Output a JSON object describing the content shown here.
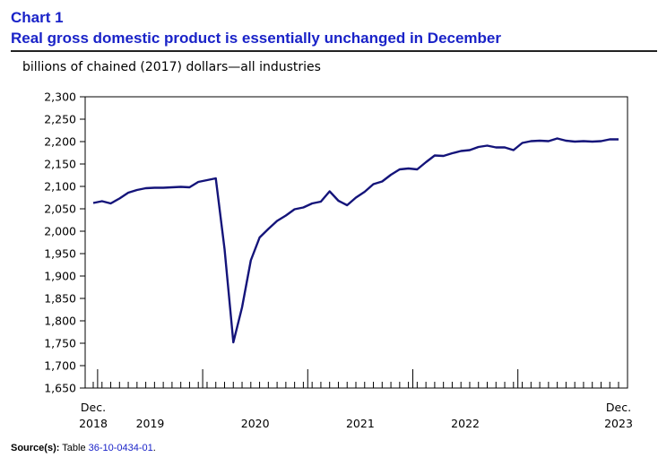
{
  "header": {
    "chart_number": "Chart 1",
    "title": "Real gross domestic product is essentially unchanged in December",
    "unit_label": "billions of chained (2017) dollars—all industries"
  },
  "source": {
    "label": "Source(s):",
    "prefix": "Table",
    "table_id": "36-10-0434-01",
    "suffix": "."
  },
  "colors": {
    "title": "#1a23c8",
    "line": "#14147a",
    "link": "#1a23c8"
  },
  "chart_data": {
    "type": "line",
    "title": "Real gross domestic product is essentially unchanged in December",
    "ylabel": "billions of chained (2017) dollars—all industries",
    "xlabel": "",
    "ylim": [
      1650,
      2300
    ],
    "yticks": [
      1650,
      1700,
      1750,
      1800,
      1850,
      1900,
      1950,
      2000,
      2050,
      2100,
      2150,
      2200,
      2250,
      2300
    ],
    "ytick_labels": [
      "1,650",
      "1,700",
      "1,750",
      "1,800",
      "1,850",
      "1,900",
      "1,950",
      "2,000",
      "2,050",
      "2,100",
      "2,150",
      "2,200",
      "2,250",
      "2,300"
    ],
    "x_month_count": 61,
    "x_labels": [
      {
        "index": 0,
        "top": "Dec.",
        "bottom": "2018"
      },
      {
        "index": 6.5,
        "top": "",
        "bottom": "2019"
      },
      {
        "index": 18.5,
        "top": "",
        "bottom": "2020"
      },
      {
        "index": 30.5,
        "top": "",
        "bottom": "2021"
      },
      {
        "index": 42.5,
        "top": "",
        "bottom": "2022"
      },
      {
        "index": 60,
        "top": "Dec.",
        "bottom": "2023"
      }
    ],
    "year_boundaries": [
      0.5,
      12.5,
      24.5,
      36.5,
      48.5
    ],
    "grid": false,
    "legend": "none",
    "series": [
      {
        "name": "Real GDP, all industries",
        "start": "2018-12",
        "frequency": "monthly",
        "values": [
          2063,
          2067,
          2062,
          2073,
          2086,
          2092,
          2096,
          2097,
          2097,
          2098,
          2099,
          2098,
          2110,
          2114,
          2118,
          1960,
          1752,
          1830,
          1935,
          1986,
          2005,
          2023,
          2035,
          2049,
          2053,
          2062,
          2066,
          2089,
          2068,
          2058,
          2075,
          2088,
          2105,
          2111,
          2126,
          2138,
          2140,
          2138,
          2154,
          2169,
          2168,
          2174,
          2179,
          2181,
          2188,
          2191,
          2187,
          2187,
          2181,
          2197,
          2201,
          2202,
          2201,
          2207,
          2202,
          2200,
          2201,
          2200,
          2201,
          2205,
          2205
        ]
      }
    ]
  }
}
